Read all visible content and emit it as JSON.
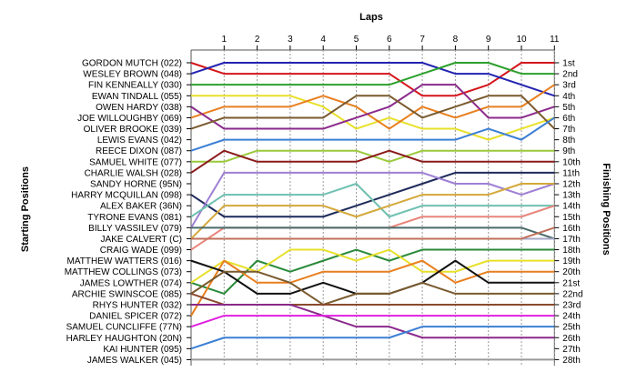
{
  "chart_data": {
    "type": "line",
    "title": "",
    "xlabel": "Laps",
    "ylabel_left": "Starting Positions",
    "ylabel_right": "Finishing Positions",
    "laps": [
      1,
      2,
      3,
      4,
      5,
      6,
      7,
      8,
      9,
      10,
      11
    ],
    "start_labels": [
      "GORDON MUTCH (022)",
      "WESLEY BROWN (048)",
      "FIN KENNEALLY (030)",
      "EWAN TINDALL (055)",
      "OWEN HARDY (038)",
      "JOE WILLOUGHBY (069)",
      "OLIVER BROOKE (039)",
      "LEWIS EVANS (042)",
      "REECE DIXON (087)",
      "SAMUEL WHITE (077)",
      "CHARLIE WALSH (028)",
      "SANDY HORNE (95N)",
      "HARRY MCQUILLAN (098)",
      "ALEX BAKER (36N)",
      "TYRONE EVANS (081)",
      "BILLY VASSILEV (079)",
      "JAKE CALVERT (C)",
      "CRAIG WADE (099)",
      "MATTHEW WATTERS (016)",
      "MATTHEW COLLINGS (073)",
      "JAMES LOWTHER (074)",
      "ARCHIE SWINSCOE (085)",
      "RHYS HUNTER (032)",
      "DANIEL SPICER (072)",
      "SAMUEL CUNCLIFFE (77N)",
      "HARLEY HAUGHTON (20N)",
      "KAI HUNTER (095)",
      "JAMES WALKER (045)"
    ],
    "finish_labels": [
      "1st",
      "2nd",
      "3rd",
      "4th",
      "5th",
      "6th",
      "7th",
      "8th",
      "9th",
      "10th",
      "11th",
      "12th",
      "13th",
      "14th",
      "15th",
      "16th",
      "17th",
      "18th",
      "19th",
      "20th",
      "21st",
      "22nd",
      "23rd",
      "24th",
      "25th",
      "26th",
      "27th",
      "28th"
    ],
    "series": [
      {
        "color": "#d4151b",
        "positions": [
          1,
          2,
          2,
          2,
          2,
          2,
          2,
          4,
          4,
          3,
          1,
          1
        ]
      },
      {
        "color": "#2323b0",
        "positions": [
          2,
          1,
          1,
          1,
          1,
          1,
          1,
          1,
          2,
          2,
          3,
          4
        ]
      },
      {
        "color": "#2ca02c",
        "positions": [
          3,
          3,
          3,
          3,
          3,
          3,
          3,
          2,
          1,
          1,
          2,
          2
        ]
      },
      {
        "color": "#e8e02a",
        "positions": [
          4,
          4,
          4,
          4,
          5,
          7,
          6,
          7,
          7,
          8,
          7,
          6
        ]
      },
      {
        "color": "#e87f1f",
        "positions": [
          6,
          5,
          5,
          5,
          4,
          5,
          7,
          5,
          6,
          5,
          5,
          3
        ]
      },
      {
        "color": "#8b2a8b",
        "positions": [
          5,
          7,
          7,
          7,
          7,
          6,
          5,
          3,
          3,
          6,
          6,
          5
        ]
      },
      {
        "color": "#7a5a2e",
        "positions": [
          7,
          6,
          6,
          6,
          6,
          4,
          4,
          6,
          5,
          4,
          4,
          7
        ]
      },
      {
        "color": "#3b7fd4",
        "positions": [
          9,
          8,
          8,
          8,
          8,
          8,
          8,
          8,
          8,
          7,
          8,
          6
        ]
      },
      {
        "color": "#9ac93a",
        "positions": [
          10,
          10,
          9,
          9,
          9,
          9,
          10,
          9,
          9,
          9,
          9,
          9
        ]
      },
      {
        "color": "#8b1a1a",
        "positions": [
          11,
          9,
          10,
          10,
          10,
          10,
          9,
          10,
          10,
          10,
          10,
          10
        ]
      },
      {
        "color": "#1e2a5a",
        "positions": [
          13,
          15,
          15,
          15,
          15,
          14,
          13,
          12,
          11,
          11,
          11,
          11
        ]
      },
      {
        "color": "#9e7fd4",
        "positions": [
          16,
          11,
          11,
          11,
          11,
          11,
          11,
          11,
          12,
          12,
          13,
          12
        ]
      },
      {
        "color": "#6fc0b0",
        "positions": [
          15,
          13,
          13,
          13,
          13,
          12,
          15,
          14,
          14,
          14,
          14,
          14
        ]
      },
      {
        "color": "#d4a83a",
        "positions": [
          17,
          14,
          14,
          14,
          14,
          15,
          14,
          13,
          13,
          13,
          12,
          12
        ]
      },
      {
        "color": "#e8857a",
        "positions": [
          18,
          16,
          16,
          16,
          16,
          16,
          16,
          15,
          15,
          15,
          15,
          14
        ]
      },
      {
        "color": "#4a6a6a",
        "positions": [
          16,
          16,
          16,
          16,
          16,
          16,
          16,
          16,
          16,
          16,
          16,
          17
        ]
      },
      {
        "color": "#a8a8c8",
        "positions": [
          17,
          17,
          17,
          17,
          17,
          17,
          17,
          17,
          17,
          17,
          17,
          17
        ]
      },
      {
        "color": "#c0705a",
        "positions": [
          17,
          17,
          17,
          17,
          17,
          17,
          17,
          17,
          17,
          17,
          17,
          16
        ]
      },
      {
        "color": "#2a8a3a",
        "positions": [
          21,
          22,
          19,
          20,
          19,
          18,
          19,
          18,
          18,
          18,
          18,
          18
        ]
      },
      {
        "color": "#e8e02a",
        "positions": [
          21,
          19,
          20,
          18,
          18,
          19,
          18,
          20,
          20,
          19,
          19,
          19
        ]
      },
      {
        "color": "#e87f1f",
        "positions": [
          24,
          19,
          21,
          21,
          20,
          20,
          20,
          19,
          21,
          20,
          20,
          20
        ]
      },
      {
        "color": "#111111",
        "positions": [
          19,
          20,
          22,
          22,
          21,
          22,
          22,
          21,
          19,
          21,
          21,
          21
        ]
      },
      {
        "color": "#7a5a2e",
        "positions": [
          22,
          20,
          20,
          21,
          23,
          22,
          22,
          21,
          22,
          22,
          22,
          22
        ]
      },
      {
        "color": "#8b4a2e",
        "positions": [
          22,
          23,
          23,
          23,
          23,
          23,
          23,
          23,
          23,
          23,
          23,
          23
        ]
      },
      {
        "color": "#8b2a8b",
        "positions": [
          23,
          23,
          23,
          23,
          24,
          25,
          25,
          26,
          26,
          26,
          26,
          26
        ]
      },
      {
        "color": "#e020e0",
        "positions": [
          25,
          24,
          24,
          24,
          24,
          24,
          24,
          24,
          24,
          24,
          24,
          24
        ]
      },
      {
        "color": "#3b7fd4",
        "positions": [
          27,
          26,
          26,
          26,
          26,
          26,
          26,
          25,
          25,
          25,
          25,
          25
        ]
      },
      {
        "color": "#999999",
        "positions": [
          28,
          28,
          28,
          28,
          28,
          28,
          28,
          28,
          28,
          28,
          28,
          28
        ]
      }
    ]
  }
}
